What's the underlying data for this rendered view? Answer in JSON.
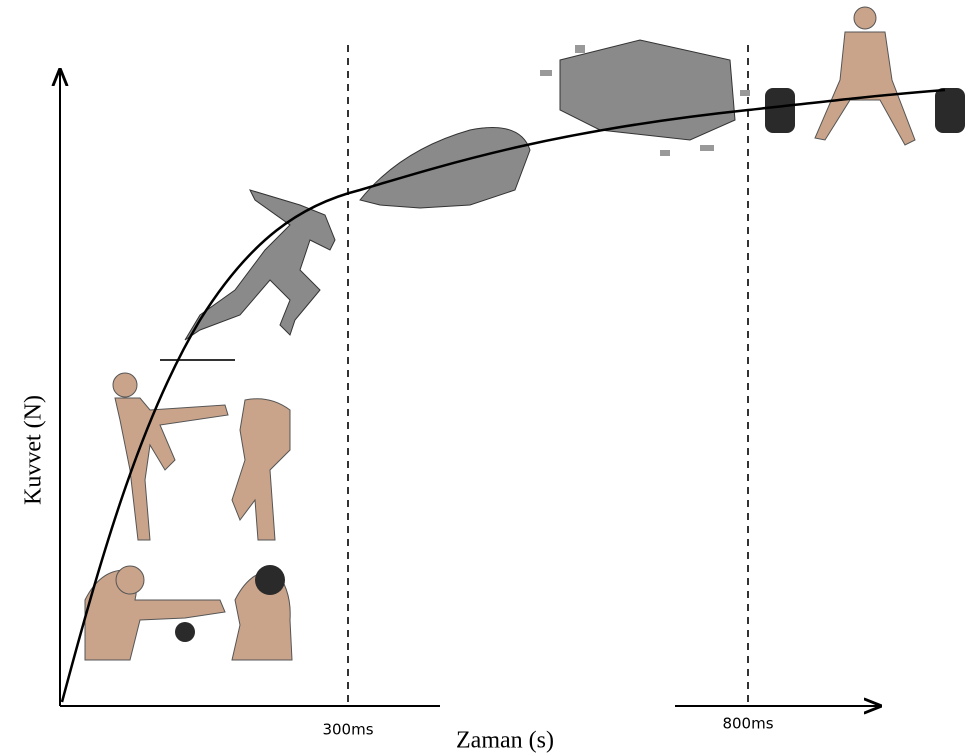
{
  "axes": {
    "y_label": "Kuvvet (N)",
    "x_label": "Zaman (s)"
  },
  "markers": [
    {
      "label": "300ms"
    },
    {
      "label": "800ms"
    }
  ]
}
